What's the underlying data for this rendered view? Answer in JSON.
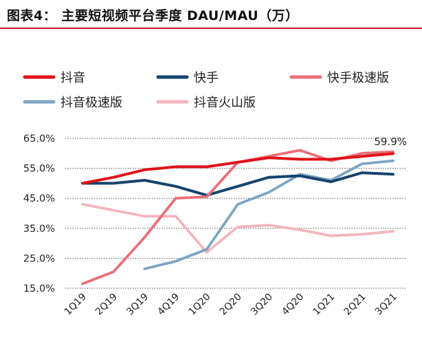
{
  "header": {
    "figure_title": "图表4：  主要短视频平台季度 DAU/MAU（万）"
  },
  "chart_data": {
    "type": "line",
    "title": "",
    "xlabel": "",
    "ylabel": "",
    "categories": [
      "1Q19",
      "2Q19",
      "3Q19",
      "4Q19",
      "1Q20",
      "2Q20",
      "3Q20",
      "4Q20",
      "1Q21",
      "2Q21",
      "3Q21"
    ],
    "yticks": [
      15,
      25,
      35,
      45,
      55,
      65
    ],
    "ytick_labels": [
      "15.0%",
      "25.0%",
      "35.0%",
      "45.0%",
      "55.0%",
      "65.0%"
    ],
    "ylim": [
      15,
      65
    ],
    "grid": "horizontal dotted",
    "legend_position": "top",
    "series": [
      {
        "name": "抖音",
        "color": "#e0131b",
        "values": [
          50.0,
          52.0,
          54.5,
          55.5,
          55.5,
          57.0,
          58.5,
          58.0,
          58.0,
          59.0,
          59.9
        ]
      },
      {
        "name": "快手",
        "color": "#15446e",
        "values": [
          50.0,
          50.0,
          51.0,
          49.0,
          46.0,
          49.0,
          52.0,
          52.5,
          50.5,
          53.5,
          53.0
        ]
      },
      {
        "name": "快手极速版",
        "color": "#ea6f78",
        "values": [
          16.5,
          20.5,
          32.0,
          45.0,
          45.5,
          57.0,
          59.0,
          61.0,
          57.5,
          60.0,
          60.5
        ]
      },
      {
        "name": "抖音极速版",
        "color": "#7ea5c3",
        "values": [
          null,
          null,
          21.5,
          24.0,
          28.0,
          43.0,
          47.0,
          53.0,
          51.0,
          56.5,
          57.5
        ]
      },
      {
        "name": "抖音火山版",
        "color": "#f4b6bd",
        "values": [
          43.0,
          41.0,
          39.0,
          39.0,
          27.0,
          35.5,
          36.0,
          34.5,
          32.5,
          33.0,
          34.0
        ]
      }
    ],
    "annotations": [
      {
        "text": "59.9%",
        "series": "抖音",
        "category": "3Q21"
      }
    ]
  }
}
